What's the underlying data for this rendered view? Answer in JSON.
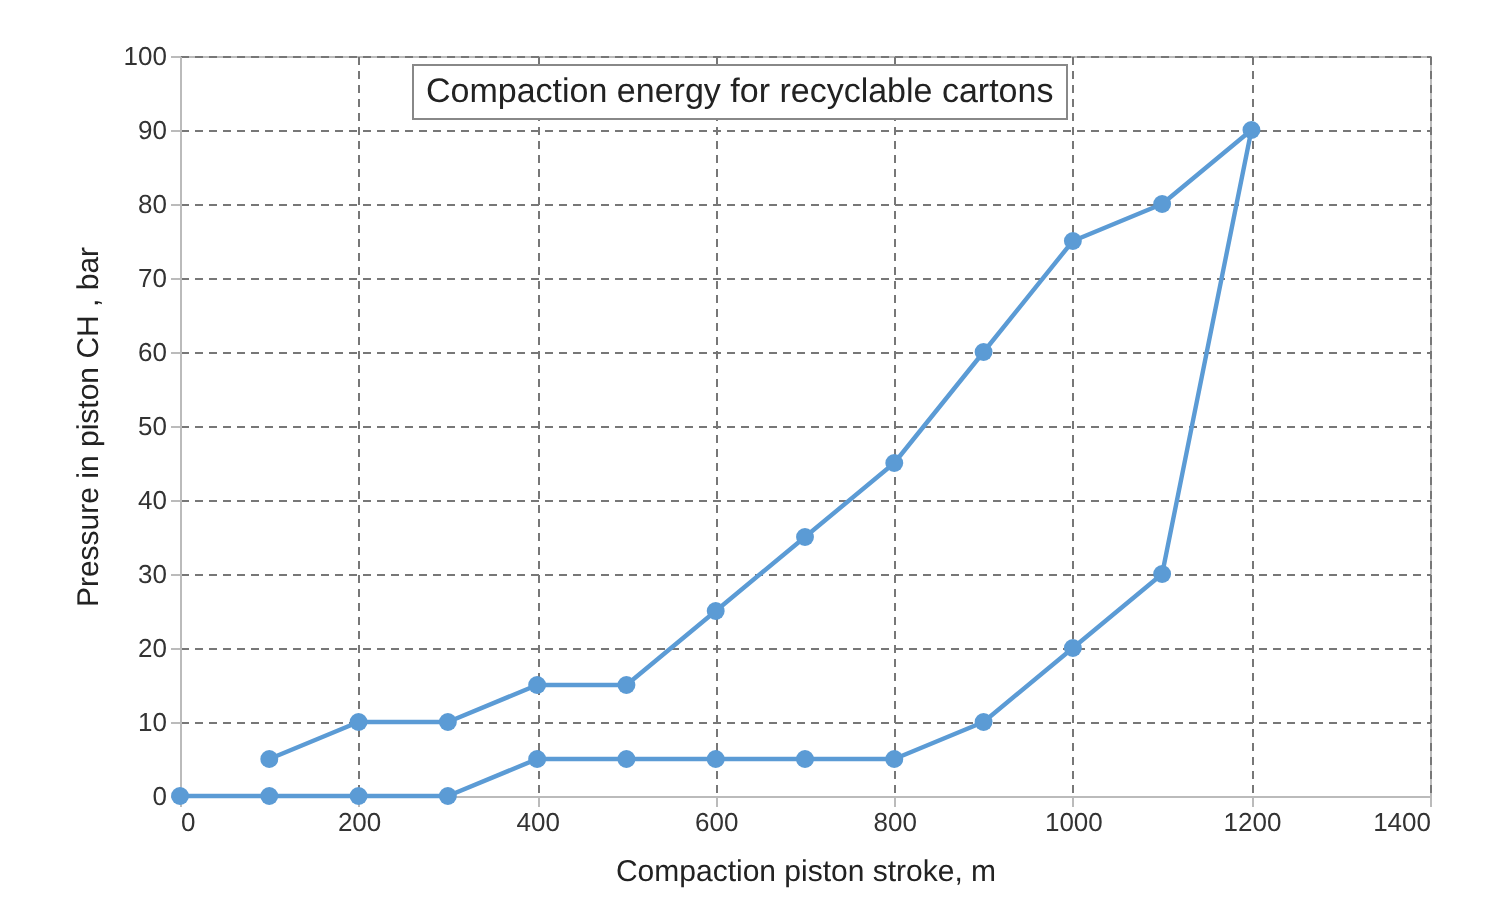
{
  "chart_data": {
    "type": "line",
    "title": "Compaction energy for recyclable cartons",
    "xlabel": "Compaction piston stroke, m",
    "ylabel": "Pressure  in piston CH , bar",
    "series": [
      {
        "color": "#5b9bd5",
        "x": [
          0,
          100,
          200,
          300,
          400,
          500,
          600,
          700,
          800,
          900,
          1000,
          1100,
          1200,
          1100,
          1000,
          900,
          800,
          700,
          600,
          500,
          400,
          300,
          200,
          100
        ],
        "values": [
          0,
          0,
          0,
          0,
          5,
          5,
          5,
          5,
          5,
          10,
          20,
          30,
          90,
          80,
          75,
          60,
          45,
          35,
          25,
          15,
          15,
          10,
          10,
          5
        ]
      }
    ],
    "xlim": [
      0,
      1400
    ],
    "xticks": [
      0,
      200,
      400,
      600,
      800,
      1000,
      1200,
      1400
    ],
    "ylim": [
      0,
      100
    ],
    "yticks": [
      0,
      10,
      20,
      30,
      40,
      50,
      60,
      70,
      80,
      90,
      100
    ],
    "grid": true,
    "marker": "circle",
    "line_style": "solid"
  }
}
